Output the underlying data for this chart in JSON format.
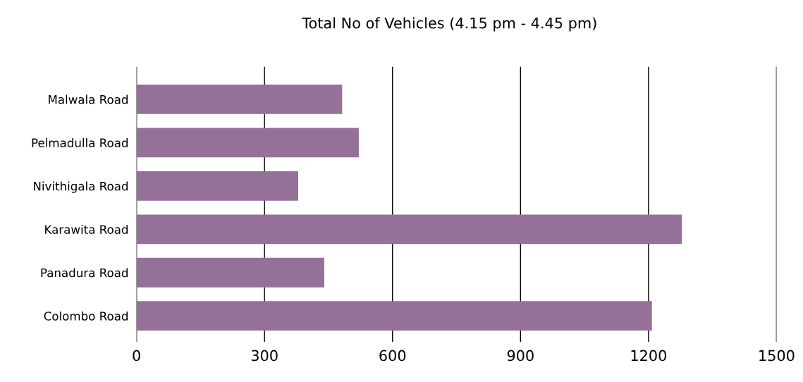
{
  "chart_data": {
    "type": "bar",
    "orientation": "horizontal",
    "title": "Total No of Vehicles (4.15 pm - 4.45 pm)",
    "categories": [
      "Malwala Road",
      "Pelmadulla Road",
      "Nivithigala Road",
      "Karawita Road",
      "Panadura Road",
      "Colombo Road"
    ],
    "values": [
      482,
      521,
      379,
      1278,
      440,
      1208
    ],
    "color": "#957099",
    "xlim": [
      0,
      1500
    ],
    "xticks": [
      0,
      300,
      600,
      900,
      1200,
      1500
    ],
    "grid": "x"
  }
}
